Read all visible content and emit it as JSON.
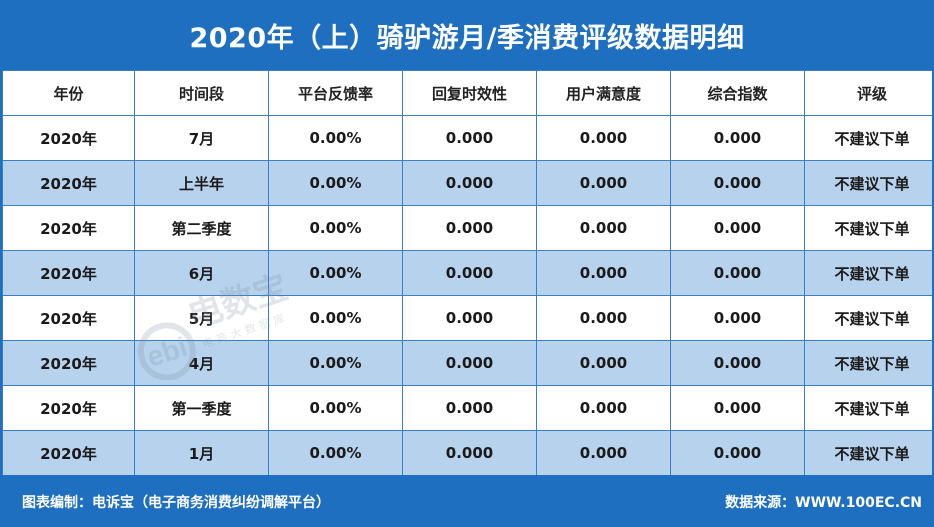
{
  "title": "2020年（上）骑驴游月/季消费评级数据明细",
  "columns": [
    "年份",
    "时间段",
    "平台反馈率",
    "回复时效性",
    "用户满意度",
    "综合指数",
    "评级"
  ],
  "rows": [
    [
      "2020年",
      "7月",
      "0.00%",
      "0.000",
      "0.000",
      "0.000",
      "不建议下单"
    ],
    [
      "2020年",
      "上半年",
      "0.00%",
      "0.000",
      "0.000",
      "0.000",
      "不建议下单"
    ],
    [
      "2020年",
      "第二季度",
      "0.00%",
      "0.000",
      "0.000",
      "0.000",
      "不建议下单"
    ],
    [
      "2020年",
      "6月",
      "0.00%",
      "0.000",
      "0.000",
      "0.000",
      "不建议下单"
    ],
    [
      "2020年",
      "5月",
      "0.00%",
      "0.000",
      "0.000",
      "0.000",
      "不建议下单"
    ],
    [
      "2020年",
      "4月",
      "0.00%",
      "0.000",
      "0.000",
      "0.000",
      "不建议下单"
    ],
    [
      "2020年",
      "第一季度",
      "0.00%",
      "0.000",
      "0.000",
      "0.000",
      "不建议下单"
    ],
    [
      "2020年",
      "1月",
      "0.00%",
      "0.000",
      "0.000",
      "0.000",
      "不建议下单"
    ]
  ],
  "watermark": {
    "logo_text": "ebi",
    "brand": "电数宝",
    "tagline": "电商大数据库"
  },
  "footer": {
    "left": "图表编制：电诉宝（电子商务消费纠纷调解平台）",
    "right": "数据来源：WWW.100EC.CN"
  },
  "colors": {
    "brand_blue": "#1f6fc0",
    "row_alt": "#b7d2ec",
    "border": "#3a7ec4"
  }
}
